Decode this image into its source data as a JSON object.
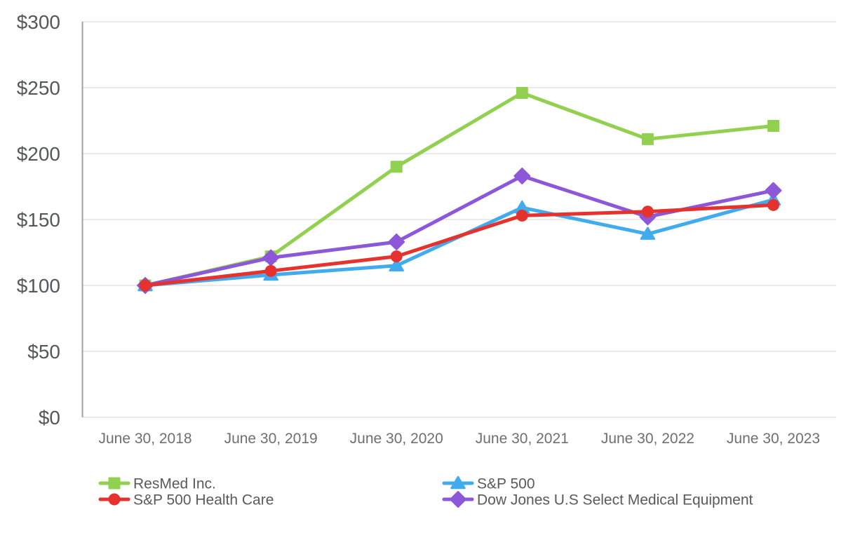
{
  "chart_data": {
    "type": "line",
    "title": "",
    "xlabel": "",
    "ylabel": "",
    "ylim": [
      0,
      300
    ],
    "grid": true,
    "legend_position": "bottom",
    "x_categories": [
      "June 30, 2018",
      "June 30, 2019",
      "June 30, 2020",
      "June 30, 2021",
      "June 30, 2022",
      "June 30, 2023"
    ],
    "y_ticks": [
      {
        "value": 300,
        "label": "$300"
      },
      {
        "value": 250,
        "label": "$250"
      },
      {
        "value": 200,
        "label": "$200"
      },
      {
        "value": 150,
        "label": "$150"
      },
      {
        "value": 100,
        "label": "$100"
      },
      {
        "value": 50,
        "label": "$50"
      },
      {
        "value": 0,
        "label": "$0"
      }
    ],
    "series": [
      {
        "name": "ResMed Inc.",
        "color": "#92D050",
        "marker": "square",
        "values": [
          100,
          122,
          190,
          246,
          211,
          221
        ]
      },
      {
        "name": "S&P 500",
        "color": "#41ABEE",
        "marker": "triangle",
        "values": [
          100,
          108,
          115,
          159,
          139,
          165
        ]
      },
      {
        "name": "S&P 500 Health Care",
        "color": "#E5322E",
        "marker": "circle",
        "values": [
          100,
          111,
          122,
          153,
          156,
          161
        ]
      },
      {
        "name": "Dow Jones U.S Select Medical Equipment",
        "color": "#8C57D9",
        "marker": "diamond",
        "values": [
          100,
          121,
          133,
          183,
          152,
          172
        ]
      }
    ],
    "legend": {
      "left_column": [
        "ResMed Inc.",
        "S&P 500 Health Care"
      ],
      "right_column": [
        "S&P 500",
        "Dow Jones U.S Select Medical Equipment"
      ]
    }
  },
  "colors": {
    "gridline": "#E3E3E3",
    "axis_line": "#A0A0A0",
    "y_tick_text": "#555759",
    "x_tick_text": "#6F6F6F",
    "legend_text": "#5A5A5A",
    "background": "#FFFFFF"
  }
}
